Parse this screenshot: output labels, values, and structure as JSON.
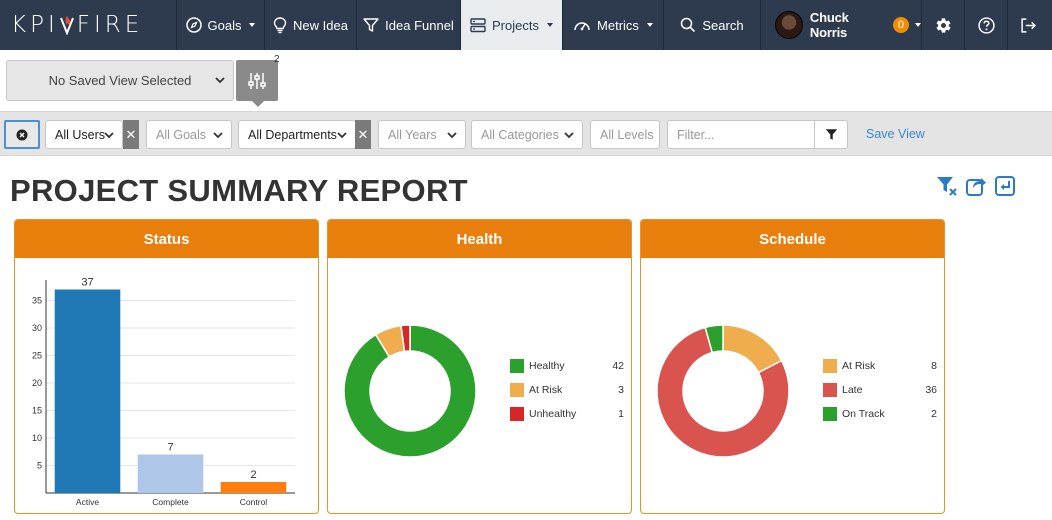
{
  "nav": {
    "logo_left": "KPI",
    "logo_right": "FIRE",
    "items": [
      {
        "label": "Goals",
        "icon": "compass-icon"
      },
      {
        "label": "New Idea",
        "icon": "lightbulb-icon"
      },
      {
        "label": "Idea Funnel",
        "icon": "funnel-icon"
      },
      {
        "label": "Projects",
        "icon": "server-icon"
      },
      {
        "label": "Metrics",
        "icon": "gauge-icon"
      },
      {
        "label": "Search",
        "icon": "search-icon"
      }
    ],
    "user_name": "Chuck Norris",
    "notifications": "0"
  },
  "saved_view": {
    "selected": "No Saved View Selected",
    "settings_count": "2"
  },
  "filters": {
    "users": "All Users",
    "goals": "All Goals",
    "departments": "All Departments",
    "years": "All Years",
    "categories": "All Categories",
    "levels": "All Levels",
    "filter_placeholder": "Filter...",
    "save_view": "Save View"
  },
  "page": {
    "title": "PROJECT SUMMARY REPORT"
  },
  "panels": {
    "status": "Status",
    "health": "Health",
    "schedule": "Schedule"
  },
  "colors": {
    "nav_bg": "#2e3b4e",
    "panel_header": "#e87f0c",
    "active_blue": "#1f77b4",
    "complete_lightblue": "#aec7e8",
    "control_orange": "#ff7f0e",
    "healthy_green": "#2ca02c",
    "at_risk_orange": "#f0ad4e",
    "unhealthy_red": "#d62728",
    "late_red": "#d9534f",
    "link_blue": "#3a87d6"
  },
  "chart_data": [
    {
      "type": "bar",
      "title": "Status",
      "categories": [
        "Active",
        "Complete",
        "Control"
      ],
      "values": [
        37,
        7,
        2
      ],
      "colors": [
        "#1f77b4",
        "#aec7e8",
        "#ff7f0e"
      ],
      "yticks": [
        5,
        10,
        15,
        20,
        25,
        30,
        35
      ],
      "ylim": [
        0,
        38
      ],
      "grid": true
    },
    {
      "type": "pie",
      "title": "Health",
      "donut": true,
      "labels": [
        "Healthy",
        "At Risk",
        "Unhealthy"
      ],
      "values": [
        42,
        3,
        1
      ],
      "colors": [
        "#2ca02c",
        "#f0ad4e",
        "#d62728"
      ],
      "legend": "right"
    },
    {
      "type": "pie",
      "title": "Schedule",
      "donut": true,
      "labels": [
        "At Risk",
        "Late",
        "On Track"
      ],
      "values": [
        8,
        36,
        2
      ],
      "colors": [
        "#f0ad4e",
        "#d9534f",
        "#2ca02c"
      ],
      "legend": "right"
    }
  ]
}
